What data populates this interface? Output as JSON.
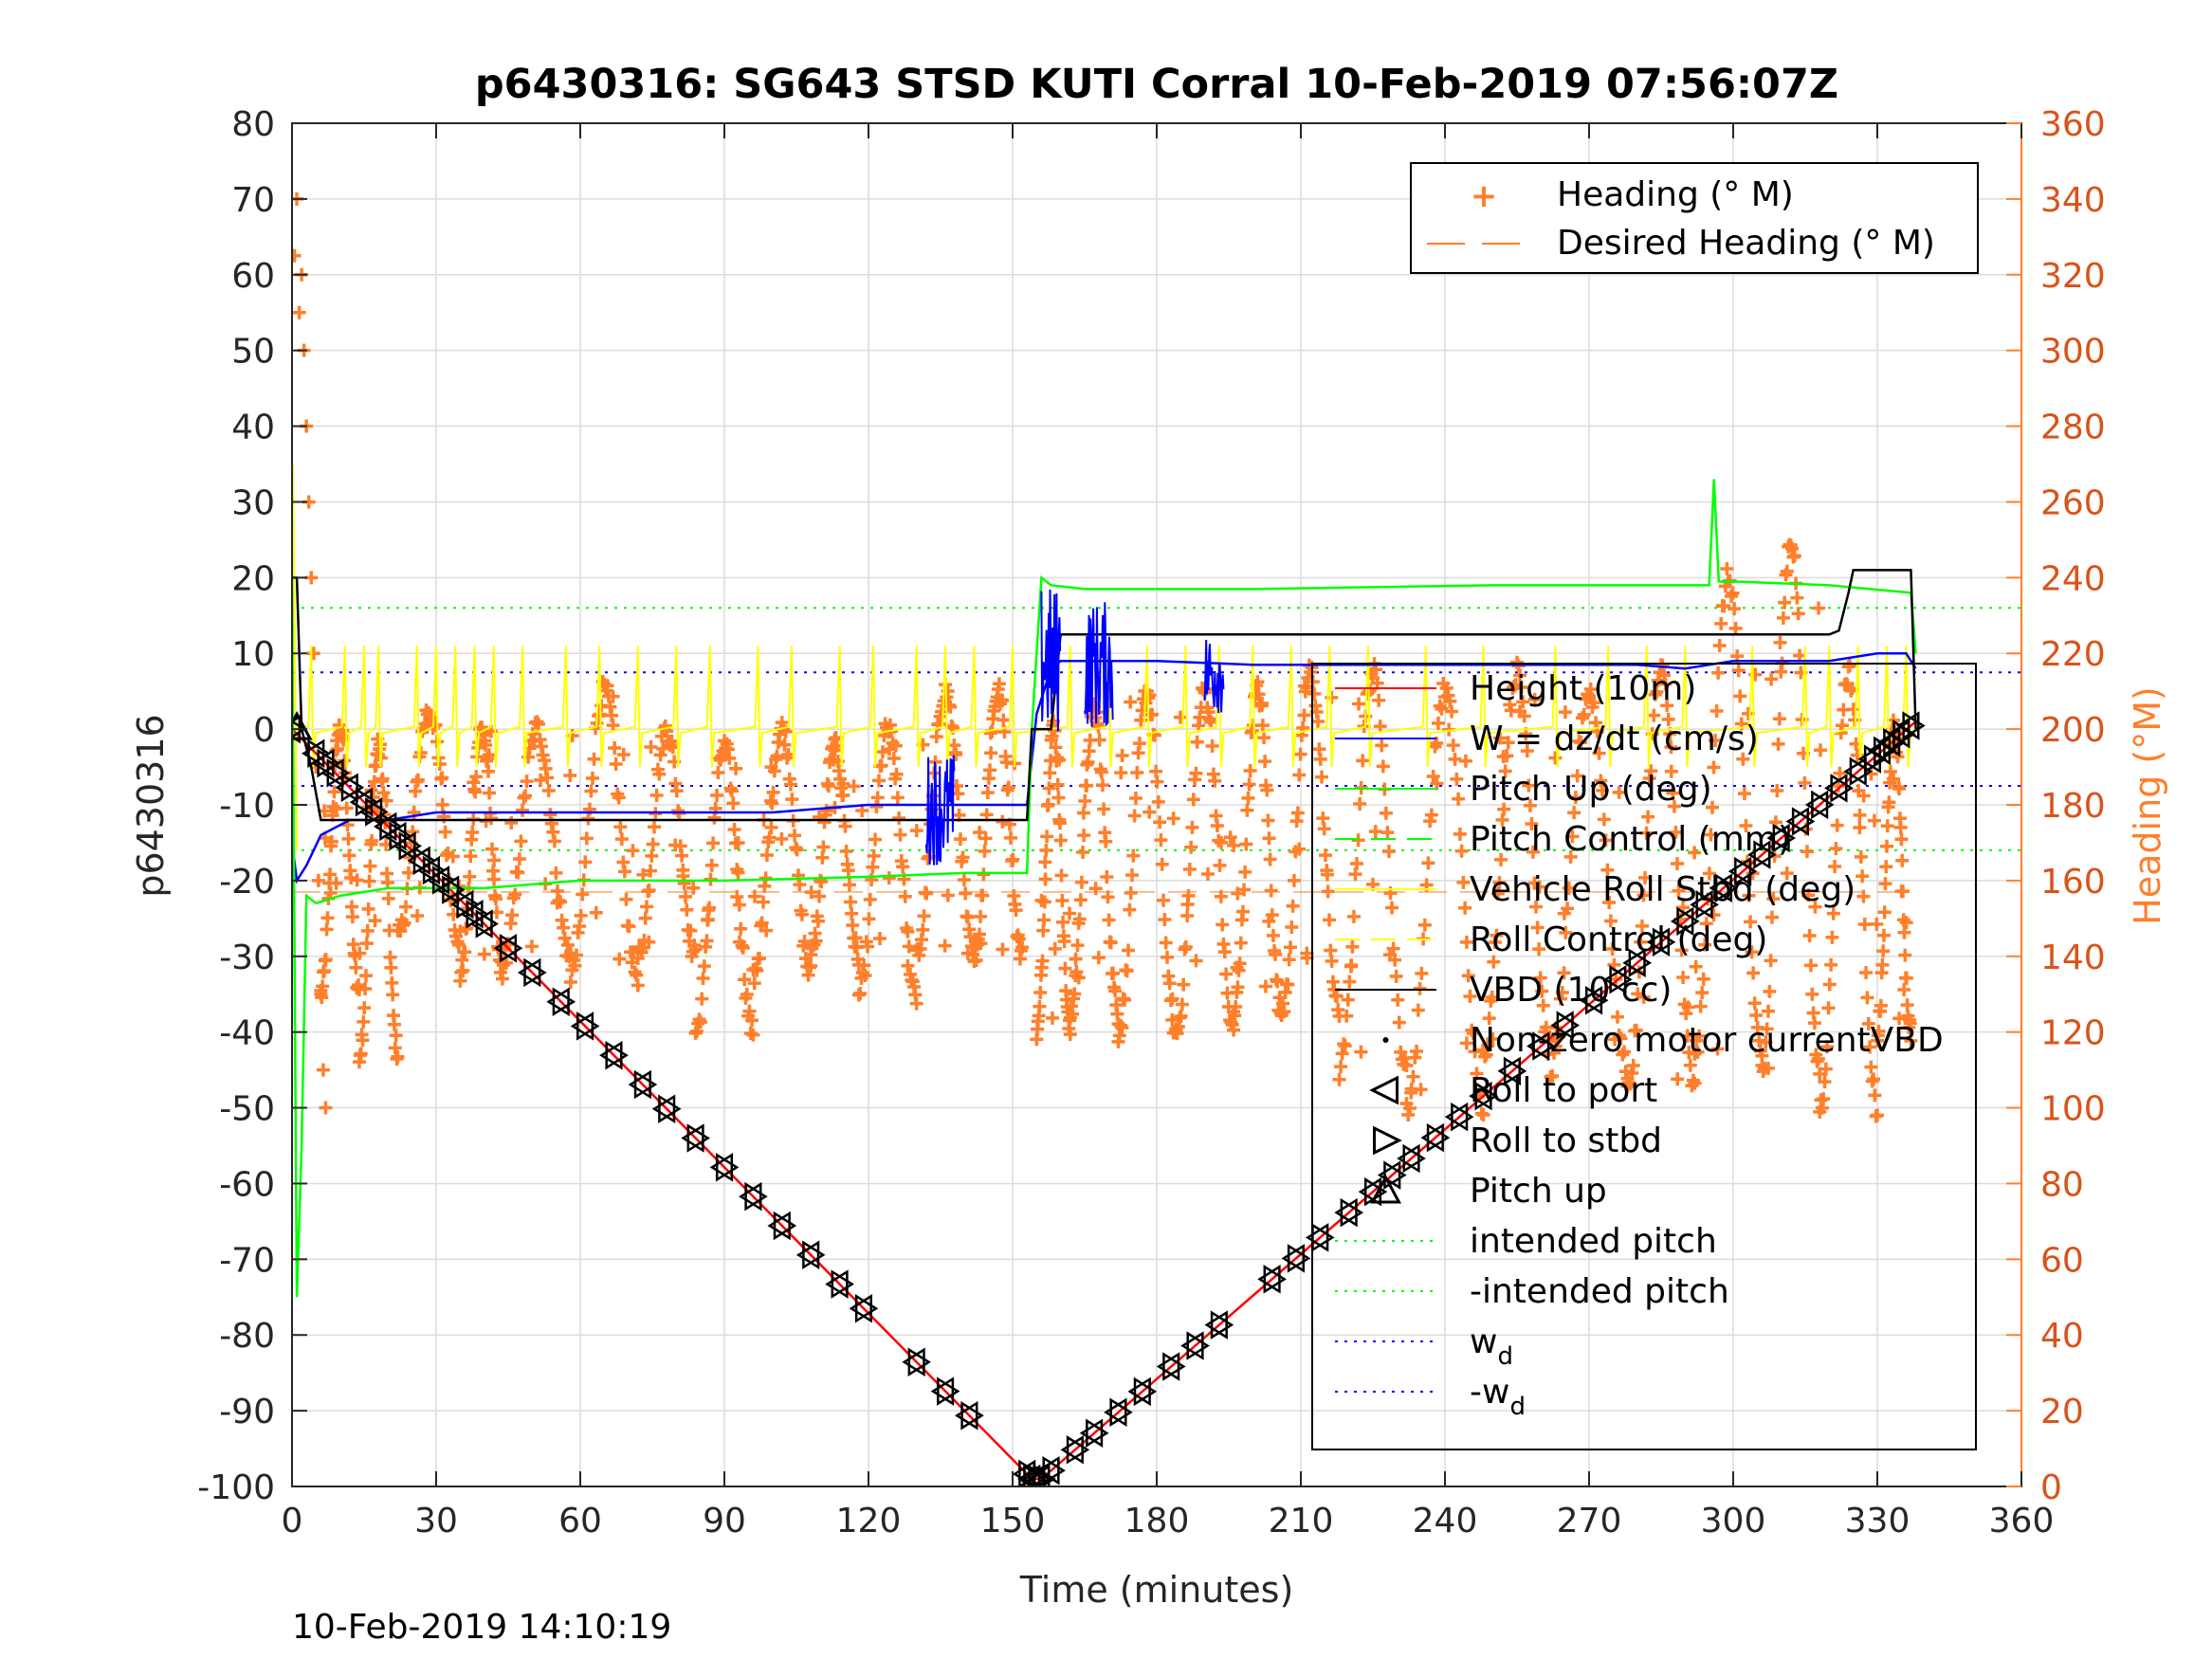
{
  "chart_data": {
    "type": "line",
    "title": "p6430316: SG643 STSD KUTI Corral 10-Feb-2019 07:56:07Z",
    "xlabel": "Time (minutes)",
    "ylabel_left": "p6430316",
    "ylabel_right": "Heading (°M)",
    "footer": "10-Feb-2019 14:10:19",
    "xlim": [
      0,
      360
    ],
    "ylim_left": [
      -100,
      80
    ],
    "ylim_right": [
      0,
      360
    ],
    "xticks": [
      "0",
      "30",
      "60",
      "90",
      "120",
      "150",
      "180",
      "210",
      "240",
      "270",
      "300",
      "330",
      "360"
    ],
    "yticks_left": [
      "80",
      "70",
      "60",
      "50",
      "40",
      "30",
      "20",
      "10",
      "0",
      "-10",
      "-20",
      "-30",
      "-40",
      "-50",
      "-60",
      "-70",
      "-80",
      "-90",
      "-100"
    ],
    "yticks_right": [
      "360",
      "340",
      "320",
      "300",
      "280",
      "260",
      "240",
      "220",
      "200",
      "180",
      "160",
      "140",
      "120",
      "100",
      "80",
      "60",
      "40",
      "20",
      "0"
    ],
    "grid": true,
    "legend_top": [
      {
        "label": "Heading (° M)",
        "marker": "+",
        "color": "#ff7f2a"
      },
      {
        "label": "Desired Heading (° M)",
        "style": "dashed",
        "color": "#ff7f2a"
      }
    ],
    "legend_main": [
      {
        "label": "Height (10m)",
        "style": "solid",
        "color": "#ff0000"
      },
      {
        "label": "W = dz/dt (cm/s)",
        "style": "solid",
        "color": "#0000ff"
      },
      {
        "label": "Pitch Up (deg)",
        "style": "solid",
        "color": "#00ff00"
      },
      {
        "label": "Pitch Control (mm)",
        "style": "dashed",
        "color": "#00ff00"
      },
      {
        "label": "Vehicle Roll Stbd (deg)",
        "style": "solid",
        "color": "#ffff00"
      },
      {
        "label": "Roll Control (deg)",
        "style": "dashed",
        "color": "#ffff00"
      },
      {
        "label": "VBD (10 cc)",
        "style": "solid",
        "color": "#000000"
      },
      {
        "label": "Non-zero motor currentVBD",
        "marker": "dot",
        "color": "#000000"
      },
      {
        "label": "Roll to port",
        "marker": "triangle-left",
        "color": "#000000"
      },
      {
        "label": "Roll to stbd",
        "marker": "triangle-right",
        "color": "#000000"
      },
      {
        "label": "Pitch up",
        "marker": "triangle-up",
        "color": "#000000"
      },
      {
        "label": "intended pitch",
        "style": "dotted",
        "color": "#00ff00"
      },
      {
        "label": "-intended pitch",
        "style": "dotted",
        "color": "#00ff00"
      },
      {
        "label": "w",
        "sub": "d",
        "style": "dotted",
        "color": "#0000ff"
      },
      {
        "label": "-w",
        "sub": "d",
        "style": "dotted",
        "color": "#0000ff"
      }
    ],
    "reference_lines": {
      "intended_pitch": 16,
      "neg_intended_pitch": -16,
      "w_d": 7.5,
      "neg_w_d": -7.5
    },
    "series": [
      {
        "name": "Height (10m)",
        "color": "#ff0000",
        "x": [
          0,
          154,
          156,
          338
        ],
        "y": [
          0,
          -99,
          -99,
          1
        ]
      },
      {
        "name": "W = dz/dt (cm/s)",
        "color": "#0000ff",
        "x": [
          0,
          1,
          3,
          6,
          12,
          20,
          30,
          45,
          60,
          80,
          100,
          120,
          135,
          145,
          152,
          153,
          155,
          158,
          160,
          170,
          180,
          200,
          220,
          250,
          280,
          290,
          300,
          320,
          330,
          336,
          338
        ],
        "y": [
          -15,
          -20,
          -18,
          -14,
          -12,
          -12,
          -11,
          -11,
          -11,
          -11,
          -11,
          -10,
          -10,
          -10,
          -10,
          -10,
          2,
          8,
          9,
          9,
          9,
          8.5,
          8.5,
          8.5,
          8.5,
          8,
          9,
          9,
          10,
          10,
          8
        ]
      },
      {
        "name": "Pitch Up (deg)",
        "color": "#00ff00",
        "x": [
          0,
          1,
          2,
          3,
          5,
          10,
          20,
          40,
          60,
          90,
          120,
          140,
          152,
          153,
          154,
          156,
          158,
          165,
          200,
          250,
          295,
          296,
          297,
          300,
          320,
          337,
          338
        ],
        "y": [
          20,
          -75,
          -55,
          -22,
          -23,
          -22,
          -21,
          -21,
          -20,
          -20,
          -19.5,
          -19,
          -19,
          -19,
          0,
          20,
          19,
          18.5,
          18.5,
          19,
          19,
          33,
          19.5,
          19.5,
          19,
          18,
          10
        ]
      },
      {
        "name": "VBD (10 cc)",
        "color": "#000000",
        "x": [
          0,
          1,
          2,
          4,
          6,
          10,
          152,
          153,
          154,
          158,
          160,
          320,
          322,
          324,
          325,
          337,
          338
        ],
        "y": [
          20,
          20,
          0,
          -5,
          -12,
          -12,
          -12,
          -12,
          0,
          0,
          12.5,
          12.5,
          13,
          18,
          21,
          21,
          0
        ]
      }
    ],
    "roll_spikes_x": [
      4,
      11,
      15,
      18,
      26,
      30,
      34,
      38,
      42,
      48,
      57,
      64,
      72,
      80,
      87,
      97,
      104,
      114,
      121,
      130,
      136,
      142,
      150,
      162,
      170,
      178,
      186,
      193,
      200,
      208,
      216,
      224,
      236,
      248,
      263,
      274,
      282,
      290,
      304,
      315,
      320,
      326,
      332,
      336
    ],
    "heading_oscillations": [
      {
        "t": [
          6,
          14
        ],
        "min": 130,
        "max": 200
      },
      {
        "t": [
          14,
          22
        ],
        "min": 115,
        "max": 195
      },
      {
        "t": [
          22,
          35
        ],
        "min": 145,
        "max": 205
      },
      {
        "t": [
          35,
          44
        ],
        "min": 135,
        "max": 200
      },
      {
        "t": [
          44,
          58
        ],
        "min": 140,
        "max": 200
      },
      {
        "t": [
          58,
          72
        ],
        "min": 135,
        "max": 210
      },
      {
        "t": [
          72,
          84
        ],
        "min": 140,
        "max": 200
      },
      {
        "t": [
          84,
          96
        ],
        "min": 120,
        "max": 195
      },
      {
        "t": [
          96,
          108
        ],
        "min": 135,
        "max": 200
      },
      {
        "t": [
          108,
          118
        ],
        "min": 140,
        "max": 195
      },
      {
        "t": [
          118,
          130
        ],
        "min": 130,
        "max": 200
      },
      {
        "t": [
          130,
          142
        ],
        "min": 140,
        "max": 210
      },
      {
        "t": [
          142,
          152
        ],
        "min": 140,
        "max": 210
      },
      {
        "t": [
          155,
          162
        ],
        "min": 120,
        "max": 200
      },
      {
        "t": [
          162,
          172
        ],
        "min": 125,
        "max": 205
      },
      {
        "t": [
          172,
          184
        ],
        "min": 120,
        "max": 210
      },
      {
        "t": [
          184,
          196
        ],
        "min": 120,
        "max": 210
      },
      {
        "t": [
          196,
          206
        ],
        "min": 125,
        "max": 210
      },
      {
        "t": [
          206,
          218
        ],
        "min": 125,
        "max": 215
      },
      {
        "t": [
          218,
          232
        ],
        "min": 110,
        "max": 215
      },
      {
        "t": [
          232,
          248
        ],
        "min": 100,
        "max": 210
      },
      {
        "t": [
          248,
          262
        ],
        "min": 115,
        "max": 215
      },
      {
        "t": [
          262,
          278
        ],
        "min": 110,
        "max": 210
      },
      {
        "t": [
          278,
          292
        ],
        "min": 105,
        "max": 215
      },
      {
        "t": [
          292,
          306
        ],
        "min": 115,
        "max": 240
      },
      {
        "t": [
          306,
          318
        ],
        "min": 110,
        "max": 250
      },
      {
        "t": [
          318,
          330
        ],
        "min": 100,
        "max": 215
      },
      {
        "t": [
          330,
          337
        ],
        "min": 120,
        "max": 200
      }
    ],
    "heading_initial": [
      {
        "x": 0.5,
        "y": 325
      },
      {
        "x": 1,
        "y": 340
      },
      {
        "x": 1.5,
        "y": 310
      },
      {
        "x": 2,
        "y": 320
      },
      {
        "x": 2.5,
        "y": 300
      },
      {
        "x": 3,
        "y": 280
      },
      {
        "x": 3.5,
        "y": 260
      },
      {
        "x": 4,
        "y": 240
      },
      {
        "x": 4.5,
        "y": 220
      },
      {
        "x": 5,
        "y": 190
      },
      {
        "x": 5.5,
        "y": 160
      },
      {
        "x": 6,
        "y": 130
      },
      {
        "x": 6.5,
        "y": 110
      },
      {
        "x": 7,
        "y": 100
      }
    ],
    "triangle_markers_x": [
      0,
      5,
      7,
      9,
      12,
      15,
      17,
      20,
      22,
      24,
      27,
      29,
      31,
      33,
      36,
      38,
      40,
      45,
      50,
      56,
      61,
      67,
      73,
      78,
      84,
      90,
      96,
      102,
      108,
      114,
      119,
      130,
      136,
      141,
      153,
      154,
      155,
      156,
      158,
      163,
      167,
      172,
      177,
      183,
      188,
      193,
      204,
      209,
      214,
      220,
      225,
      229,
      233,
      238,
      243,
      248,
      254,
      260,
      265,
      271,
      276,
      280,
      285,
      290,
      294,
      298,
      302,
      306,
      310,
      314,
      318,
      322,
      326,
      329,
      331,
      333,
      335,
      337
    ]
  }
}
